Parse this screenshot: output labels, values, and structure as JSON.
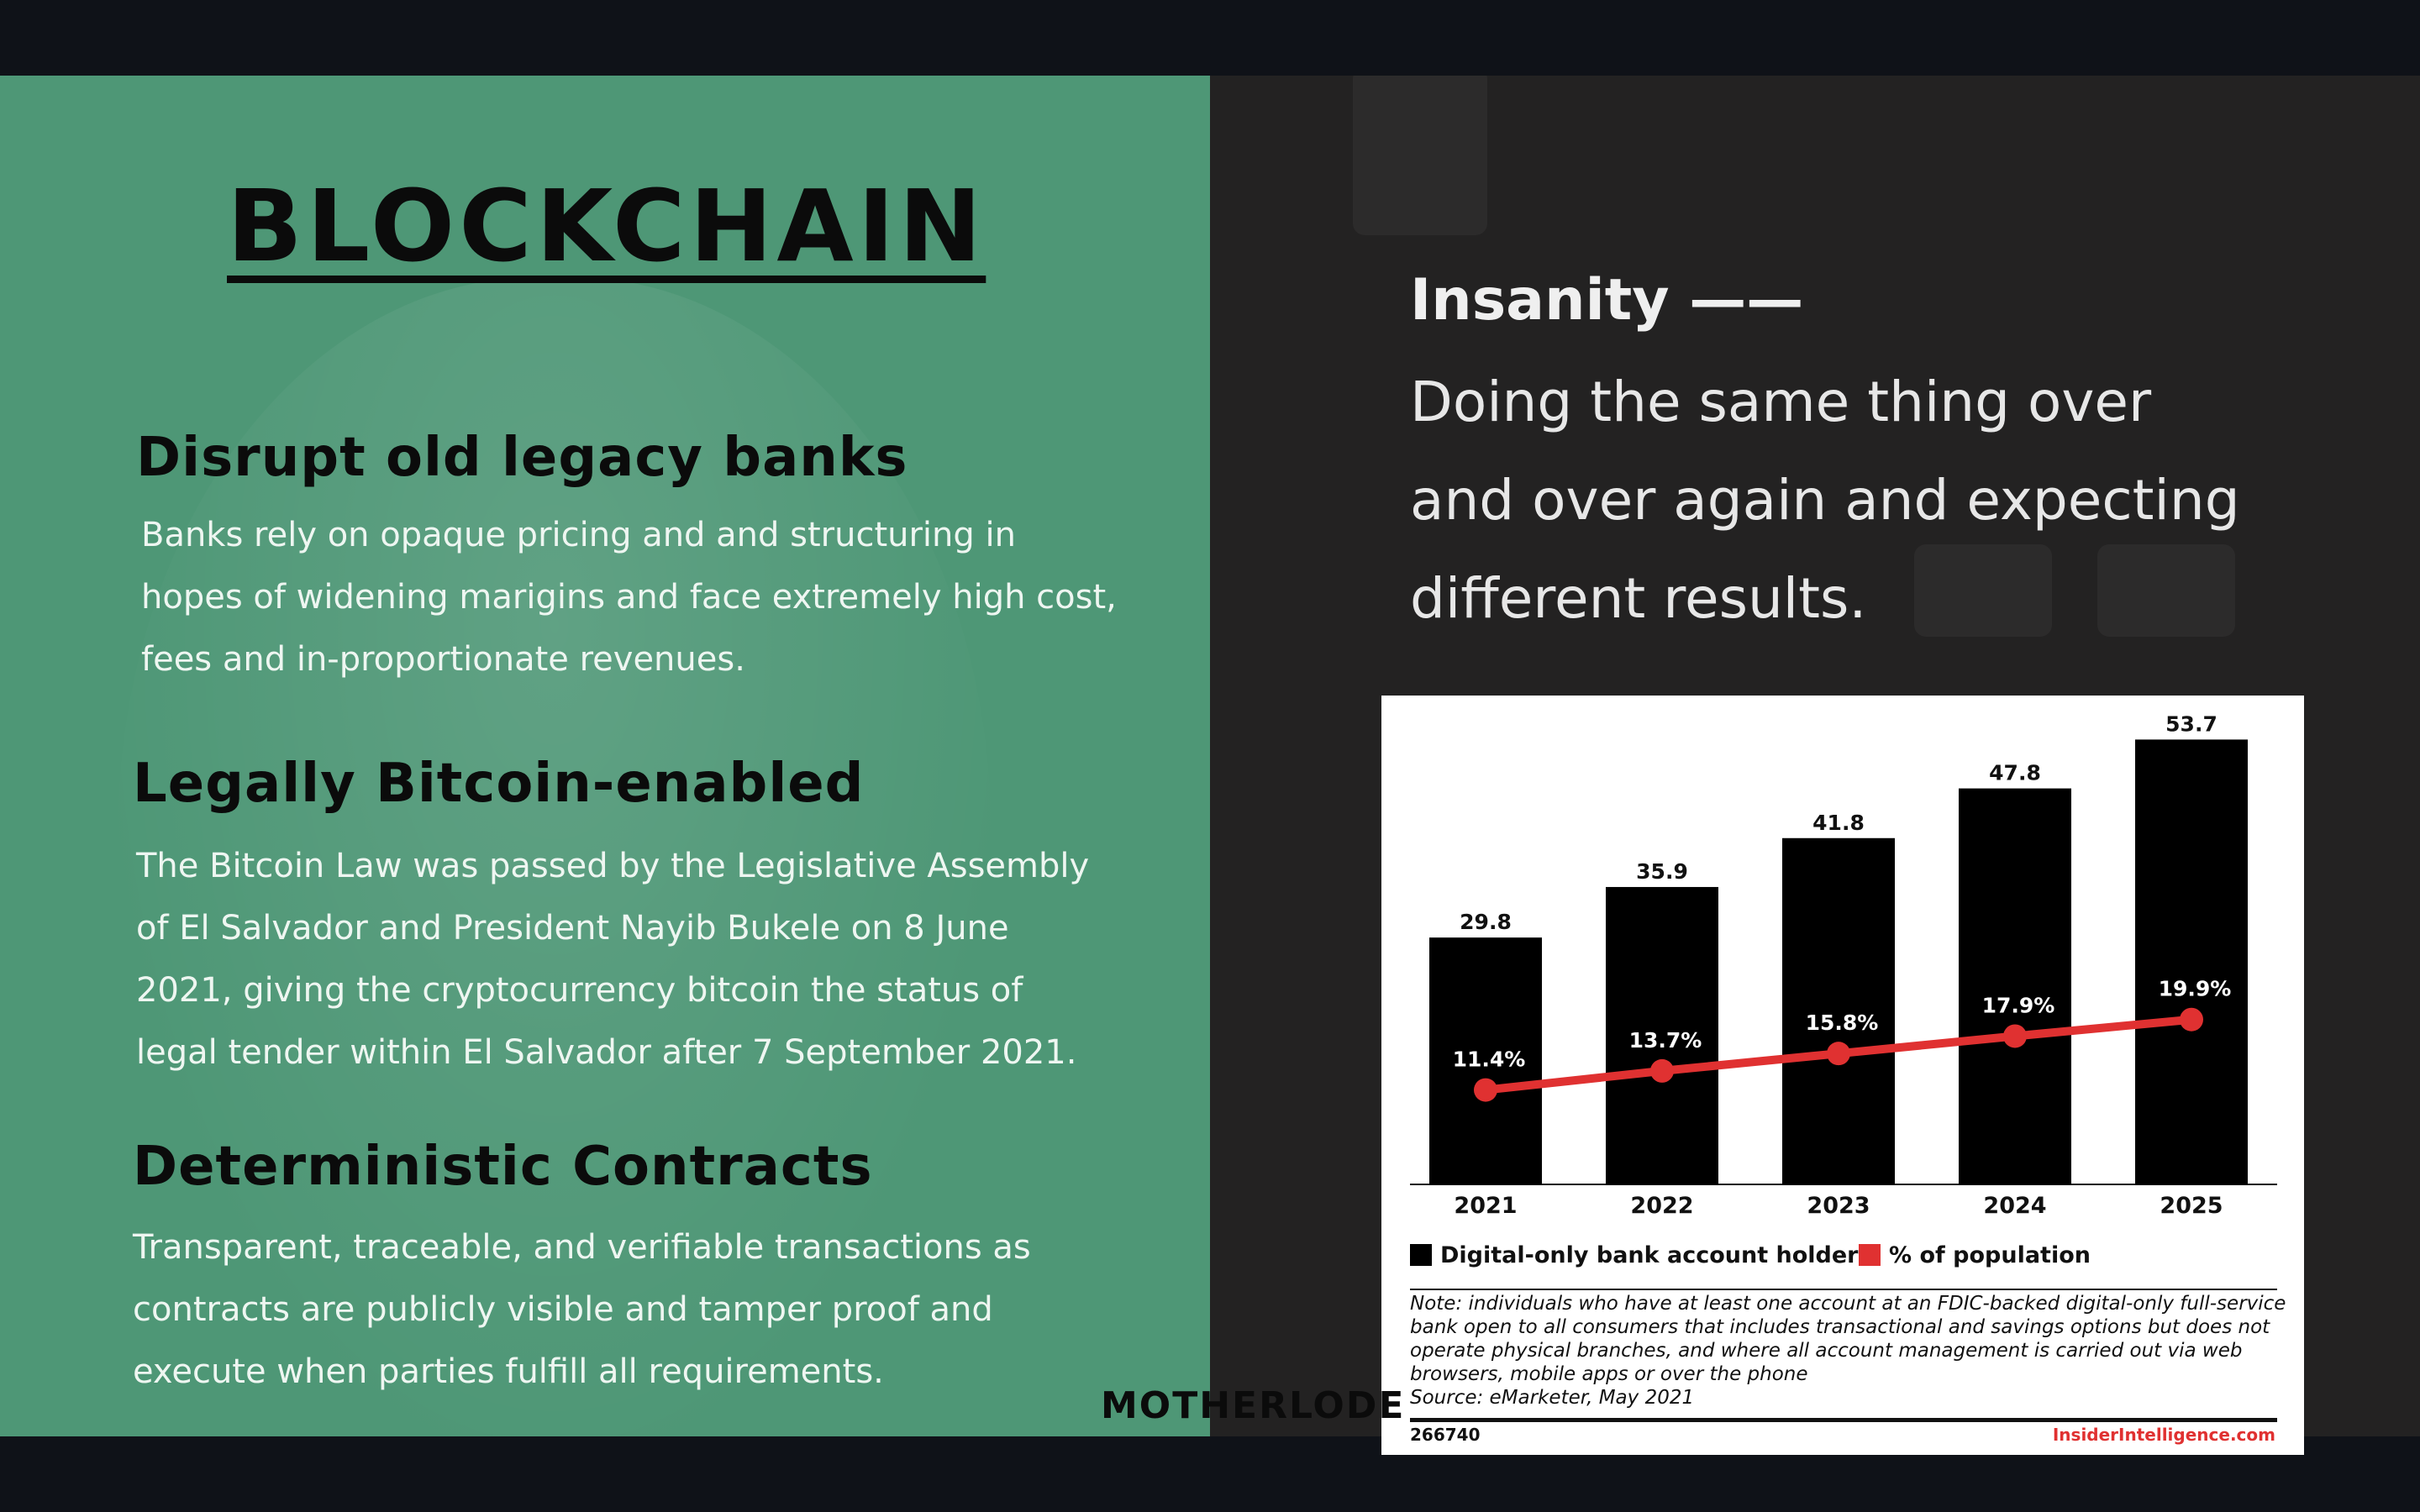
{
  "left": {
    "title": "BLOCKCHAIN",
    "sections": [
      {
        "heading": "Disrupt old legacy banks",
        "lines": [
          "Banks rely on opaque pricing and and structuring in",
          "hopes of widening marigins and face extremely high cost,",
          "fees and in-proportionate revenues."
        ]
      },
      {
        "heading": "Legally Bitcoin-enabled",
        "lines": [
          "The Bitcoin Law was passed by the Legislative Assembly",
          "of El Salvador and President Nayib Bukele on 8 June",
          "2021, giving the cryptocurrency bitcoin the status of",
          "legal tender within El Salvador after 7 September 2021."
        ]
      },
      {
        "heading": "Deterministic Contracts",
        "lines": [
          "Transparent, traceable, and verifiable transactions as",
          "contracts are publicly visible and tamper proof and",
          "execute when parties fulfill all requirements."
        ]
      }
    ]
  },
  "quote": {
    "head": "Insanity ——",
    "lines": [
      "Doing the same thing over",
      "and over again and expecting",
      "different results."
    ]
  },
  "brand": "MOTHERLODE",
  "chart_data": {
    "type": "bar",
    "categories": [
      "2021",
      "2022",
      "2023",
      "2024",
      "2025"
    ],
    "series": [
      {
        "name": "Digital-only bank account holders",
        "type": "bar",
        "values": [
          29.8,
          35.9,
          41.8,
          47.8,
          53.7
        ],
        "labels": [
          "29.8",
          "35.9",
          "41.8",
          "47.8",
          "53.7"
        ],
        "color": "#000000"
      },
      {
        "name": "% of population",
        "type": "line",
        "values": [
          11.4,
          13.7,
          15.8,
          17.9,
          19.9
        ],
        "labels": [
          "11.4%",
          "13.7%",
          "15.8%",
          "17.9%",
          "19.9%"
        ],
        "color": "#e03131"
      }
    ],
    "ylim": [
      0,
      58
    ],
    "note_lines": [
      "Note: individuals who have at least one account at an FDIC-backed digital-only full-service",
      "bank open to all consumers that includes transactional and savings options but does not",
      "operate physical branches, and where all account management is carried out via web",
      "browsers, mobile apps or over the phone",
      "Source: eMarketer, May 2021"
    ],
    "chart_id": "266740",
    "source_brand": "InsiderIntelligence.com"
  }
}
